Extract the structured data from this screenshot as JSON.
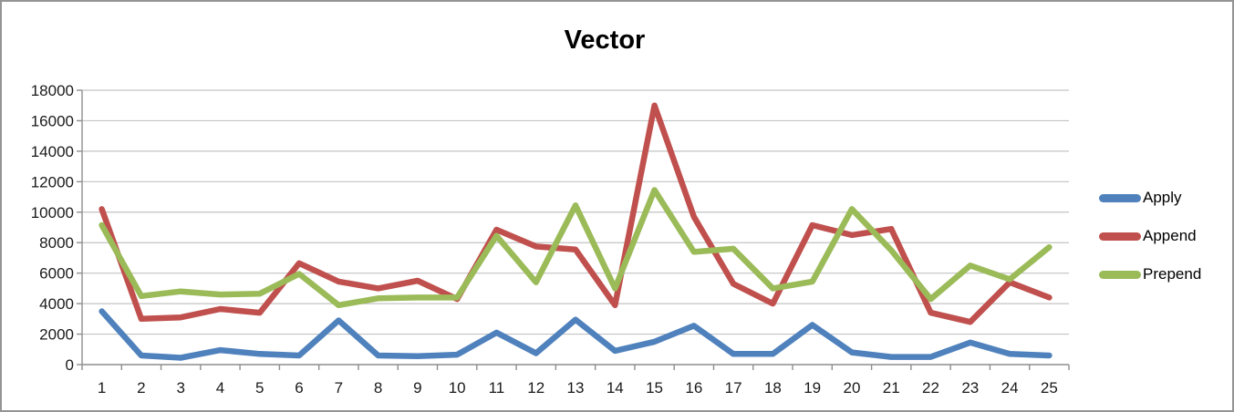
{
  "title": "Vector",
  "chart_data": {
    "type": "line",
    "title": "Vector",
    "categories": [
      1,
      2,
      3,
      4,
      5,
      6,
      7,
      8,
      9,
      10,
      11,
      12,
      13,
      14,
      15,
      16,
      17,
      18,
      19,
      20,
      21,
      22,
      23,
      24,
      25
    ],
    "series": [
      {
        "name": "Apply",
        "color": "#4F81BD",
        "values": [
          3500,
          600,
          450,
          950,
          700,
          600,
          2900,
          600,
          550,
          650,
          2100,
          750,
          2950,
          900,
          1500,
          2550,
          700,
          700,
          2600,
          800,
          500,
          500,
          1450,
          700,
          600
        ]
      },
      {
        "name": "Append",
        "color": "#C0504D",
        "values": [
          10200,
          3000,
          3100,
          3650,
          3400,
          6650,
          5450,
          5000,
          5500,
          4300,
          8850,
          7750,
          7550,
          3900,
          17000,
          9700,
          5300,
          4000,
          9150,
          8500,
          8900,
          3400,
          2800,
          5400,
          4400
        ]
      },
      {
        "name": "Prepend",
        "color": "#9BBB59",
        "values": [
          9150,
          4500,
          4800,
          4600,
          4650,
          5950,
          3900,
          4350,
          4400,
          4400,
          8450,
          5400,
          10450,
          5000,
          11450,
          7400,
          7600,
          5000,
          5450,
          10200,
          7500,
          4300,
          6500,
          5600,
          7700
        ]
      }
    ],
    "xlabel": "",
    "ylabel": "",
    "ylim": [
      0,
      18000
    ],
    "ytick_step": 2000,
    "grid": true,
    "legend_position": "right",
    "colors": {
      "gridline": "#C3C3C3",
      "axis": "#8E8E8E",
      "tick_label": "#1a1a1a"
    }
  }
}
